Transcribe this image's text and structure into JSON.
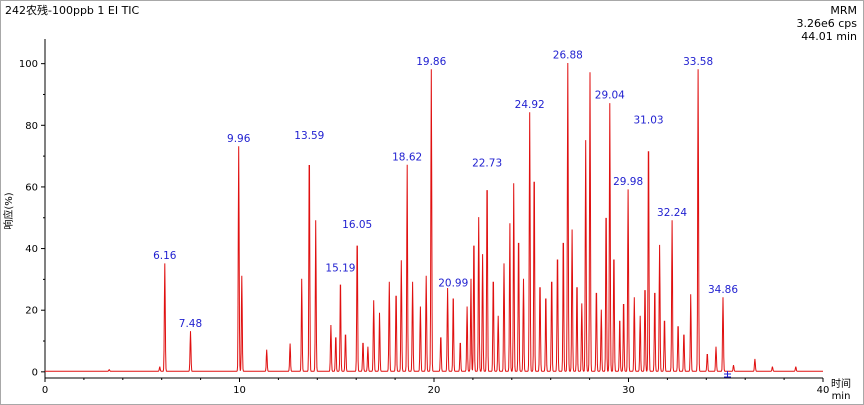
{
  "header": {
    "title": "242农残-100ppb 1 EI TIC",
    "mode": "MRM",
    "intensity": "3.26e6 cps",
    "time_readout": "44.01 min"
  },
  "chart_data": {
    "type": "line",
    "title": "242农残-100ppb 1 EI TIC",
    "ylabel": "响应(%)",
    "xlabel_top": "时间",
    "xlabel_bottom": "min",
    "xlim": [
      0,
      40
    ],
    "ylim": [
      -2,
      108
    ],
    "x_ticks": [
      0,
      10,
      20,
      30,
      40
    ],
    "x_tick_labels": [
      "0",
      "10",
      "20",
      "30",
      "40"
    ],
    "y_ticks": [
      0,
      20,
      40,
      60,
      80,
      100
    ],
    "y_tick_labels": [
      "0",
      "20",
      "40",
      "60",
      "80",
      "100"
    ],
    "grid": false,
    "line_color": "#e01010",
    "label_color": "#1f1fd0",
    "peaks": [
      {
        "x": 3.3,
        "y": 0.5
      },
      {
        "x": 5.9,
        "y": 1.5
      },
      {
        "x": 6.16,
        "y": 35,
        "label": "6.16"
      },
      {
        "x": 7.48,
        "y": 13,
        "label": "7.48"
      },
      {
        "x": 9.96,
        "y": 73,
        "label": "9.96"
      },
      {
        "x": 10.12,
        "y": 31
      },
      {
        "x": 11.4,
        "y": 7
      },
      {
        "x": 12.6,
        "y": 9
      },
      {
        "x": 13.2,
        "y": 30
      },
      {
        "x": 13.59,
        "y": 74,
        "label": "13.59"
      },
      {
        "x": 13.92,
        "y": 49
      },
      {
        "x": 14.7,
        "y": 15
      },
      {
        "x": 14.95,
        "y": 12
      },
      {
        "x": 15.19,
        "y": 31,
        "label": "15.19"
      },
      {
        "x": 15.45,
        "y": 13
      },
      {
        "x": 16.05,
        "y": 45,
        "label": "16.05"
      },
      {
        "x": 16.35,
        "y": 10
      },
      {
        "x": 16.6,
        "y": 8
      },
      {
        "x": 16.9,
        "y": 23
      },
      {
        "x": 17.2,
        "y": 19
      },
      {
        "x": 17.7,
        "y": 29
      },
      {
        "x": 18.05,
        "y": 27
      },
      {
        "x": 18.32,
        "y": 36
      },
      {
        "x": 18.62,
        "y": 67,
        "label": "18.62"
      },
      {
        "x": 18.9,
        "y": 29
      },
      {
        "x": 19.3,
        "y": 21
      },
      {
        "x": 19.6,
        "y": 31
      },
      {
        "x": 19.86,
        "y": 98,
        "label": "19.86"
      },
      {
        "x": 20.35,
        "y": 12
      },
      {
        "x": 20.7,
        "y": 27
      },
      {
        "x": 20.99,
        "y": 26,
        "label": "20.99"
      },
      {
        "x": 21.35,
        "y": 10
      },
      {
        "x": 21.7,
        "y": 21
      },
      {
        "x": 21.9,
        "y": 30
      },
      {
        "x": 22.05,
        "y": 45
      },
      {
        "x": 22.3,
        "y": 50
      },
      {
        "x": 22.5,
        "y": 38
      },
      {
        "x": 22.73,
        "y": 65,
        "label": "22.73"
      },
      {
        "x": 23.05,
        "y": 32
      },
      {
        "x": 23.3,
        "y": 18
      },
      {
        "x": 23.6,
        "y": 35
      },
      {
        "x": 23.9,
        "y": 48
      },
      {
        "x": 24.1,
        "y": 61
      },
      {
        "x": 24.35,
        "y": 46
      },
      {
        "x": 24.6,
        "y": 30
      },
      {
        "x": 24.92,
        "y": 84,
        "label": "24.92"
      },
      {
        "x": 25.15,
        "y": 68
      },
      {
        "x": 25.45,
        "y": 30
      },
      {
        "x": 25.75,
        "y": 26
      },
      {
        "x": 26.05,
        "y": 32
      },
      {
        "x": 26.35,
        "y": 40
      },
      {
        "x": 26.65,
        "y": 46
      },
      {
        "x": 26.88,
        "y": 100,
        "label": "26.88"
      },
      {
        "x": 27.1,
        "y": 46
      },
      {
        "x": 27.35,
        "y": 30
      },
      {
        "x": 27.6,
        "y": 22
      },
      {
        "x": 27.8,
        "y": 75
      },
      {
        "x": 28.02,
        "y": 97
      },
      {
        "x": 28.35,
        "y": 28
      },
      {
        "x": 28.6,
        "y": 20
      },
      {
        "x": 28.85,
        "y": 55
      },
      {
        "x": 29.04,
        "y": 87,
        "label": "29.04"
      },
      {
        "x": 29.25,
        "y": 40
      },
      {
        "x": 29.55,
        "y": 18
      },
      {
        "x": 29.75,
        "y": 24
      },
      {
        "x": 29.98,
        "y": 59,
        "label": "29.98"
      },
      {
        "x": 30.3,
        "y": 24
      },
      {
        "x": 30.6,
        "y": 18
      },
      {
        "x": 30.85,
        "y": 29
      },
      {
        "x": 31.03,
        "y": 79,
        "label": "31.03"
      },
      {
        "x": 31.35,
        "y": 28
      },
      {
        "x": 31.6,
        "y": 41
      },
      {
        "x": 31.85,
        "y": 18
      },
      {
        "x": 32.24,
        "y": 49,
        "label": "32.24"
      },
      {
        "x": 32.55,
        "y": 16
      },
      {
        "x": 32.85,
        "y": 13
      },
      {
        "x": 33.2,
        "y": 25
      },
      {
        "x": 33.58,
        "y": 98,
        "label": "33.58"
      },
      {
        "x": 34.05,
        "y": 6
      },
      {
        "x": 34.5,
        "y": 8
      },
      {
        "x": 34.86,
        "y": 24,
        "label": "34.86"
      },
      {
        "x": 35.4,
        "y": 2
      },
      {
        "x": 36.5,
        "y": 4
      },
      {
        "x": 37.4,
        "y": 1.5
      },
      {
        "x": 38.6,
        "y": 1.5
      }
    ]
  }
}
